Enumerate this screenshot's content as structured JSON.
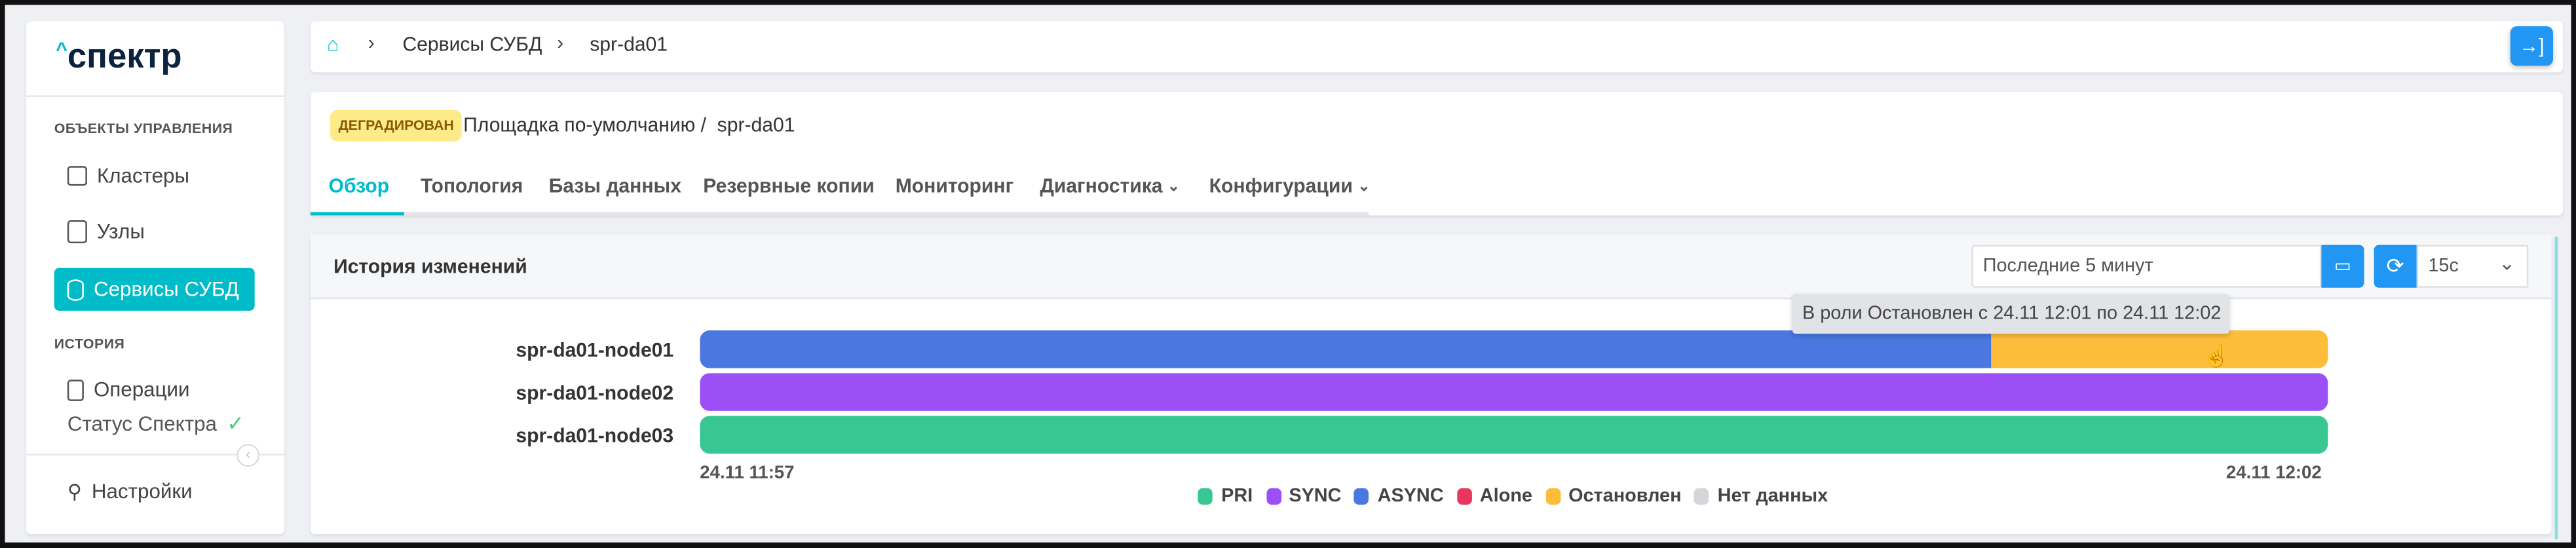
{
  "sidebar": {
    "logo": "^спектр",
    "section_objects": "ОБЪЕКТЫ УПРАВЛЕНИЯ",
    "items": [
      {
        "label": "Кластеры",
        "icon": "cluster-icon"
      },
      {
        "label": "Узлы",
        "icon": "server-icon"
      },
      {
        "label": "Сервисы СУБД",
        "icon": "database-gear-icon",
        "active": true
      }
    ],
    "section_history": "ИСТОРИЯ",
    "operations": "Операции",
    "status": "Статус Спектра",
    "settings": "Настройки"
  },
  "breadcrumb": {
    "items": [
      "Сервисы СУБД",
      "spr-da01"
    ]
  },
  "header": {
    "badge": "ДЕГРАДИРОВАН",
    "path": "Площадка по-умолчанию /  spr-da01",
    "tabs": [
      {
        "label": "Обзор",
        "active": true
      },
      {
        "label": "Топология"
      },
      {
        "label": "Базы данных"
      },
      {
        "label": "Резервные копии"
      },
      {
        "label": "Мониторинг"
      },
      {
        "label": "Диагностика",
        "dropdown": true
      },
      {
        "label": "Конфигурации",
        "dropdown": true
      }
    ]
  },
  "history": {
    "title": "История изменений",
    "range_value": "Последние 5 минут",
    "refresh_value": "15с",
    "tooltip": "В роли Остановлен с 24.11 12:01 по 24.11 12:02",
    "axis_start": "24.11 11:57",
    "axis_end": "24.11 12:02",
    "nodes": [
      {
        "name": "spr-da01-node01",
        "segments": [
          {
            "state": "ASYNC",
            "from": "24.11 11:57",
            "to": "24.11 12:01",
            "fraction": 0.793
          },
          {
            "state": "Остановлен",
            "from": "24.11 12:01",
            "to": "24.11 12:02",
            "fraction": 0.207
          }
        ]
      },
      {
        "name": "spr-da01-node02",
        "segments": [
          {
            "state": "SYNC",
            "fraction": 1
          }
        ]
      },
      {
        "name": "spr-da01-node03",
        "segments": [
          {
            "state": "PRI",
            "fraction": 1
          }
        ]
      }
    ],
    "legend": [
      {
        "label": "PRI",
        "color": "#38c793"
      },
      {
        "label": "SYNC",
        "color": "#9b4ff5"
      },
      {
        "label": "ASYNC",
        "color": "#4a77e0"
      },
      {
        "label": "Alone",
        "color": "#e8365d"
      },
      {
        "label": "Остановлен",
        "color": "#fdbd3a"
      },
      {
        "label": "Нет данных",
        "color": "#d4d6da"
      }
    ]
  },
  "colors": {
    "accent": "#00bcc8",
    "primary": "#2196f3",
    "badge_bg": "#fdeb8a",
    "badge_text": "#8a5a00"
  }
}
